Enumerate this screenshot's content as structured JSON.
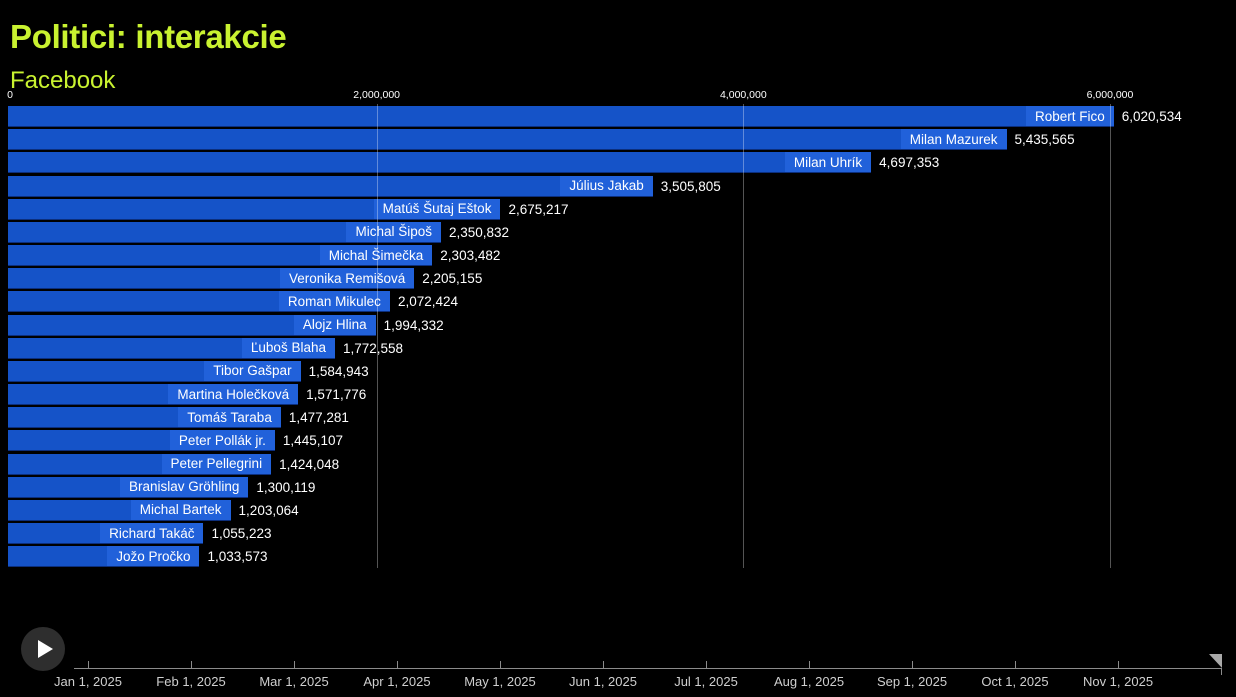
{
  "header": {
    "title": "Politici: interakcie",
    "subtitle": "Facebook"
  },
  "colors": {
    "background": "#000000",
    "accent_title": "#c9f230",
    "bar": "#1553c8",
    "bar_label_bg": "#2161da",
    "text": "#ffffff",
    "axis_line": "#8b8b8b",
    "grid": "rgba(255,255,255,0.33)"
  },
  "chart_data": {
    "type": "bar",
    "orientation": "horizontal",
    "title": "Politici: interakcie",
    "subtitle": "Facebook",
    "xlabel": "",
    "ylabel": "",
    "xlim": [
      0,
      6000000
    ],
    "grid": true,
    "legend": false,
    "x_ticks": [
      {
        "value": 0,
        "label": "0"
      },
      {
        "value": 2000000,
        "label": "2,000,000"
      },
      {
        "value": 4000000,
        "label": "4,000,000"
      },
      {
        "value": 6000000,
        "label": "6,000,000"
      }
    ],
    "bars": [
      {
        "name": "Robert Fico",
        "value": 6020534,
        "value_label": "6,020,534"
      },
      {
        "name": "Milan Mazurek",
        "value": 5435565,
        "value_label": "5,435,565"
      },
      {
        "name": "Milan Uhrík",
        "value": 4697353,
        "value_label": "4,697,353"
      },
      {
        "name": "Július Jakab",
        "value": 3505805,
        "value_label": "3,505,805"
      },
      {
        "name": "Matúš Šutaj Eštok",
        "value": 2675217,
        "value_label": "2,675,217"
      },
      {
        "name": "Michal Šipoš",
        "value": 2350832,
        "value_label": "2,350,832"
      },
      {
        "name": "Michal Šimečka",
        "value": 2303482,
        "value_label": "2,303,482"
      },
      {
        "name": "Veronika Remišová",
        "value": 2205155,
        "value_label": "2,205,155"
      },
      {
        "name": "Roman Mikulec",
        "value": 2072424,
        "value_label": "2,072,424"
      },
      {
        "name": "Alojz Hlina",
        "value": 1994332,
        "value_label": "1,994,332"
      },
      {
        "name": "Ľuboš Blaha",
        "value": 1772558,
        "value_label": "1,772,558"
      },
      {
        "name": "Tibor Gašpar",
        "value": 1584943,
        "value_label": "1,584,943"
      },
      {
        "name": "Martina Holečková",
        "value": 1571776,
        "value_label": "1,571,776"
      },
      {
        "name": "Tomáš Taraba",
        "value": 1477281,
        "value_label": "1,477,281"
      },
      {
        "name": "Peter Pollák jr.",
        "value": 1445107,
        "value_label": "1,445,107"
      },
      {
        "name": "Peter Pellegrini",
        "value": 1424048,
        "value_label": "1,424,048"
      },
      {
        "name": "Branislav Gröhling",
        "value": 1300119,
        "value_label": "1,300,119"
      },
      {
        "name": "Michal Bartek",
        "value": 1203064,
        "value_label": "1,203,064"
      },
      {
        "name": "Richard Takáč",
        "value": 1055223,
        "value_label": "1,055,223"
      },
      {
        "name": "Jožo Pročko",
        "value": 1033573,
        "value_label": "1,033,573"
      }
    ]
  },
  "timeline": {
    "tick_labels": [
      "Jan 1, 2025",
      "Feb 1, 2025",
      "Mar 1, 2025",
      "Apr 1, 2025",
      "May 1, 2025",
      "Jun 1, 2025",
      "Jul 1, 2025",
      "Aug 1, 2025",
      "Sep 1, 2025",
      "Oct 1, 2025",
      "Nov 1, 2025"
    ],
    "playhead_at": "end"
  }
}
